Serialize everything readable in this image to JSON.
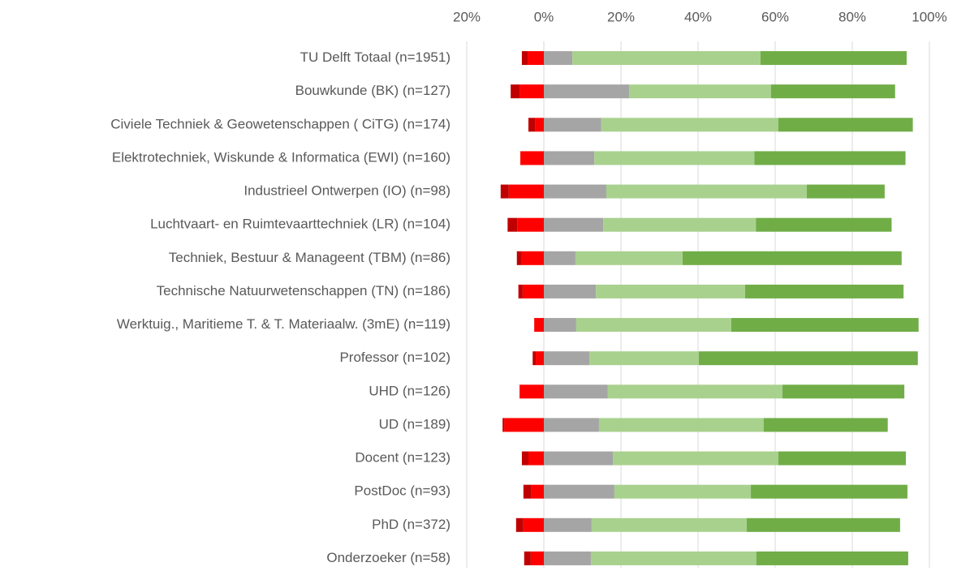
{
  "chart_data": {
    "type": "diverging_bar",
    "categories": [
      "TU Delft Totaal (n=1951)",
      "Bouwkunde (BK) (n=127)",
      "Civiele Techniek & Geowetenschappen ( CiTG) (n=174)",
      "Elektrotechniek, Wiskunde & Informatica (EWI) (n=160)",
      "Industrieel Ontwerpen (IO) (n=98)",
      "Luchtvaart- en Ruimtevaarttechniek (LR) (n=104)",
      "Techniek, Bestuur & Manageent (TBM) (n=86)",
      "Technische Natuurwetenschappen (TN) (n=186)",
      "Werktuig., Maritieme T. & T. Materiaalw. (3mE) (n=119)",
      "Professor (n=102)",
      "UHD (n=126)",
      "UD (n=189)",
      "Docent (n=123)",
      "PostDoc (n=93)",
      "PhD (n=372)",
      "Onderzoeker (n=58)"
    ],
    "series": [
      {
        "color": "#c00000",
        "values": [
          -1.5,
          -2.3,
          -1.7,
          0,
          -2.1,
          -2.5,
          -1.1,
          -1.1,
          0,
          -0.8,
          0,
          -0.4,
          -1.7,
          -2.1,
          -1.9,
          -1.7
        ]
      },
      {
        "color": "#ff0000",
        "values": [
          -4.2,
          -6.3,
          -2.3,
          -6.1,
          -9.1,
          -6.9,
          -5.9,
          -5.5,
          -2.5,
          -2.1,
          -6.3,
          -10.3,
          -4,
          -3.2,
          -5.3,
          -3.4
        ]
      },
      {
        "color": "#a5a5a5",
        "values": [
          7.4,
          22.1,
          14.9,
          13.1,
          16.2,
          15.4,
          8.2,
          13.5,
          8.4,
          11.8,
          16.6,
          14.3,
          17.9,
          18.3,
          12.4,
          12.2
        ]
      },
      {
        "color": "#a9d18e",
        "values": [
          48.8,
          36.8,
          45.9,
          41.5,
          52,
          39.6,
          27.8,
          38.7,
          40.2,
          28.4,
          45.3,
          42.7,
          42.9,
          35.4,
          40.2,
          42.9
        ]
      },
      {
        "color": "#70ad47",
        "values": [
          37.9,
          32.2,
          34.9,
          39.2,
          20.2,
          35.2,
          56.8,
          41.1,
          48.6,
          56.8,
          31.6,
          32.2,
          33.1,
          40.6,
          39.8,
          39.4
        ]
      }
    ],
    "xlim": [
      -20,
      100
    ],
    "xticks": [
      {
        "value": -20,
        "label": "20%"
      },
      {
        "value": 0,
        "label": "0%"
      },
      {
        "value": 20,
        "label": "20%"
      },
      {
        "value": 40,
        "label": "40%"
      },
      {
        "value": 60,
        "label": "60%"
      },
      {
        "value": 80,
        "label": "80%"
      },
      {
        "value": 100,
        "label": "100%"
      }
    ],
    "grid": true
  }
}
